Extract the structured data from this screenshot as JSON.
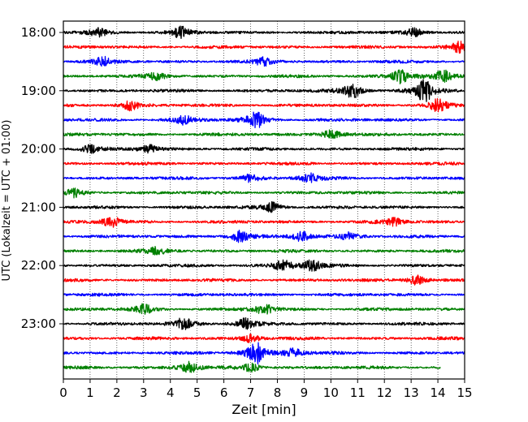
{
  "chart_data": {
    "type": "line",
    "title": "",
    "xlabel": "Zeit  [min]",
    "ylabel": "UTC (Lokalzeit = UTC + 01:00)",
    "xlim": [
      0,
      15
    ],
    "x_ticks": [
      0,
      1,
      2,
      3,
      4,
      5,
      6,
      7,
      8,
      9,
      10,
      11,
      12,
      13,
      14,
      15
    ],
    "y_tick_labels": [
      "18:00",
      "19:00",
      "20:00",
      "21:00",
      "22:00",
      "23:00"
    ],
    "grid": "vertical dotted lines at each minute",
    "trace_colors": [
      "#000000",
      "#ff0000",
      "#0000ff",
      "#008000"
    ],
    "row_interval_min": 15,
    "rows": [
      {
        "time": "18:00",
        "color": "#000000",
        "events": [
          {
            "t": 1.3,
            "amp": 1.4
          },
          {
            "t": 4.4,
            "amp": 1.8
          },
          {
            "t": 13.1,
            "amp": 1.4
          }
        ]
      },
      {
        "time": "18:15",
        "color": "#ff0000",
        "events": [
          {
            "t": 14.8,
            "amp": 2.0
          }
        ]
      },
      {
        "time": "18:30",
        "color": "#0000ff",
        "events": [
          {
            "t": 1.5,
            "amp": 1.4
          },
          {
            "t": 7.5,
            "amp": 1.2
          }
        ]
      },
      {
        "time": "18:45",
        "color": "#008000",
        "events": [
          {
            "t": 3.5,
            "amp": 1.2
          },
          {
            "t": 12.6,
            "amp": 2.4
          },
          {
            "t": 14.2,
            "amp": 1.8
          }
        ]
      },
      {
        "time": "19:00",
        "color": "#000000",
        "events": [
          {
            "t": 10.8,
            "amp": 2.6
          },
          {
            "t": 13.5,
            "amp": 4.0
          }
        ]
      },
      {
        "time": "19:15",
        "color": "#ff0000",
        "events": [
          {
            "t": 2.5,
            "amp": 1.6
          },
          {
            "t": 14.0,
            "amp": 2.0
          }
        ]
      },
      {
        "time": "19:30",
        "color": "#0000ff",
        "events": [
          {
            "t": 4.5,
            "amp": 1.4
          },
          {
            "t": 7.2,
            "amp": 2.8
          }
        ]
      },
      {
        "time": "19:45",
        "color": "#008000",
        "events": [
          {
            "t": 10.0,
            "amp": 1.6
          }
        ]
      },
      {
        "time": "20:00",
        "color": "#000000",
        "events": [
          {
            "t": 1.0,
            "amp": 1.2
          },
          {
            "t": 3.2,
            "amp": 1.4
          }
        ]
      },
      {
        "time": "20:15",
        "color": "#ff0000",
        "events": []
      },
      {
        "time": "20:30",
        "color": "#0000ff",
        "events": [
          {
            "t": 7.0,
            "amp": 1.3
          },
          {
            "t": 9.2,
            "amp": 1.6
          }
        ]
      },
      {
        "time": "20:45",
        "color": "#008000",
        "events": [
          {
            "t": 0.4,
            "amp": 1.4
          }
        ]
      },
      {
        "time": "21:00",
        "color": "#000000",
        "events": [
          {
            "t": 7.8,
            "amp": 1.6
          }
        ]
      },
      {
        "time": "21:15",
        "color": "#ff0000",
        "events": [
          {
            "t": 1.8,
            "amp": 1.8
          },
          {
            "t": 12.4,
            "amp": 1.4
          }
        ]
      },
      {
        "time": "21:30",
        "color": "#0000ff",
        "events": [
          {
            "t": 6.6,
            "amp": 1.8
          },
          {
            "t": 8.9,
            "amp": 1.6
          },
          {
            "t": 10.7,
            "amp": 1.6
          }
        ]
      },
      {
        "time": "21:45",
        "color": "#008000",
        "events": [
          {
            "t": 3.5,
            "amp": 1.2
          }
        ]
      },
      {
        "time": "22:00",
        "color": "#000000",
        "events": [
          {
            "t": 8.2,
            "amp": 2.0
          },
          {
            "t": 9.3,
            "amp": 1.8
          }
        ]
      },
      {
        "time": "22:15",
        "color": "#ff0000",
        "events": [
          {
            "t": 13.2,
            "amp": 1.6
          }
        ]
      },
      {
        "time": "22:30",
        "color": "#0000ff",
        "events": []
      },
      {
        "time": "22:45",
        "color": "#008000",
        "events": [
          {
            "t": 3.0,
            "amp": 1.6
          },
          {
            "t": 7.5,
            "amp": 1.8
          }
        ]
      },
      {
        "time": "23:00",
        "color": "#000000",
        "events": [
          {
            "t": 4.5,
            "amp": 2.0
          },
          {
            "t": 6.8,
            "amp": 1.8
          }
        ]
      },
      {
        "time": "23:15",
        "color": "#ff0000",
        "events": [
          {
            "t": 7.0,
            "amp": 1.4
          }
        ]
      },
      {
        "time": "23:30",
        "color": "#0000ff",
        "events": [
          {
            "t": 7.2,
            "amp": 4.0
          },
          {
            "t": 8.6,
            "amp": 1.6
          }
        ]
      },
      {
        "time": "23:45",
        "color": "#008000",
        "events": [
          {
            "t": 4.7,
            "amp": 1.8
          },
          {
            "t": 7.0,
            "amp": 1.4
          }
        ],
        "end_min": 14.1
      }
    ]
  }
}
